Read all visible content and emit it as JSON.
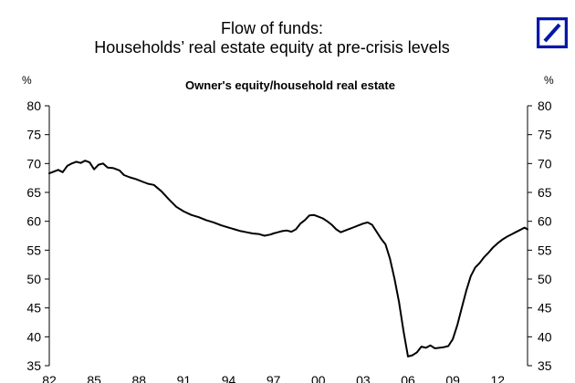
{
  "title": {
    "line1": "Flow of funds:",
    "line2": "Households’ real estate equity at pre-crisis levels"
  },
  "logo": {
    "icon": "deutsche-bank-slash-logo-icon",
    "color": "#0018a8"
  },
  "chart_data": {
    "type": "line",
    "title": "Owner's equity/household real estate",
    "ylabel_left": "%",
    "ylabel_right": "%",
    "ylim": [
      35,
      80
    ],
    "yticks": [
      35,
      40,
      45,
      50,
      55,
      60,
      65,
      70,
      75,
      80
    ],
    "ytick_labels": [
      "35",
      "40",
      "45",
      "50",
      "55",
      "60",
      "65",
      "70",
      "75",
      "80"
    ],
    "xlim": [
      1982.0,
      2014.0
    ],
    "xticks": [
      1982,
      1985,
      1988,
      1991,
      1994,
      1997,
      2000,
      2003,
      2006,
      2009,
      2012
    ],
    "xtick_labels": [
      "82",
      "85",
      "88",
      "91",
      "94",
      "97",
      "00",
      "03",
      "06",
      "09",
      "12"
    ],
    "grid": false,
    "legend": "none",
    "line_color": "#000000",
    "series": [
      {
        "x": [
          1982.0,
          1982.3,
          1982.6,
          1982.9,
          1983.2,
          1983.5,
          1983.8,
          1984.1,
          1984.4,
          1984.7,
          1985.0,
          1985.3,
          1985.6,
          1985.9,
          1986.3,
          1986.7,
          1987.0,
          1987.4,
          1987.8,
          1988.2,
          1988.6,
          1989.0,
          1989.5,
          1990.0,
          1990.5,
          1991.0,
          1991.5,
          1992.0,
          1992.5,
          1993.0,
          1993.5,
          1994.0,
          1994.4,
          1994.8,
          1995.2,
          1995.6,
          1996.0,
          1996.4,
          1996.8,
          1997.0,
          1997.3,
          1997.6,
          1997.9,
          1998.2,
          1998.5,
          1998.8,
          1999.1,
          1999.4,
          1999.7,
          2000.0,
          2000.3,
          2000.6,
          2000.9,
          2001.2,
          2001.5,
          2001.8,
          2002.1,
          2002.4,
          2002.7,
          2003.0,
          2003.3,
          2003.6,
          2003.9,
          2004.2,
          2004.5,
          2004.8,
          2005.1,
          2005.4,
          2005.7,
          2006.0,
          2006.3,
          2006.6,
          2006.9,
          2007.2,
          2007.5,
          2007.8,
          2008.1,
          2008.4,
          2008.7,
          2009.0,
          2009.3,
          2009.6,
          2009.9,
          2010.2,
          2010.5,
          2010.8,
          2011.1,
          2011.4,
          2011.7,
          2012.0,
          2012.3,
          2012.6,
          2012.9,
          2013.2,
          2013.5,
          2013.8,
          2014.0
        ],
        "y": [
          68.3,
          68.6,
          68.9,
          68.5,
          69.6,
          70.0,
          70.3,
          70.1,
          70.5,
          70.2,
          69.0,
          69.8,
          70.0,
          69.3,
          69.2,
          68.8,
          68.0,
          67.6,
          67.3,
          66.9,
          66.5,
          66.3,
          65.2,
          63.8,
          62.5,
          61.7,
          61.1,
          60.7,
          60.2,
          59.8,
          59.3,
          58.9,
          58.6,
          58.3,
          58.1,
          57.9,
          57.8,
          57.5,
          57.7,
          57.9,
          58.1,
          58.3,
          58.4,
          58.2,
          58.6,
          59.6,
          60.2,
          61.0,
          61.1,
          60.8,
          60.5,
          60.0,
          59.4,
          58.6,
          58.1,
          58.4,
          58.7,
          59.0,
          59.3,
          59.6,
          59.8,
          59.4,
          58.2,
          57.0,
          56.0,
          53.5,
          50.0,
          46.0,
          41.0,
          36.6,
          36.8,
          37.3,
          38.3,
          38.1,
          38.5,
          38.0,
          38.1,
          38.2,
          38.4,
          39.6,
          42.0,
          45.0,
          48.0,
          50.5,
          52.0,
          52.8,
          53.8,
          54.6,
          55.5,
          56.2,
          56.8,
          57.3,
          57.7,
          58.1,
          58.5,
          58.9,
          58.6
        ]
      }
    ]
  }
}
